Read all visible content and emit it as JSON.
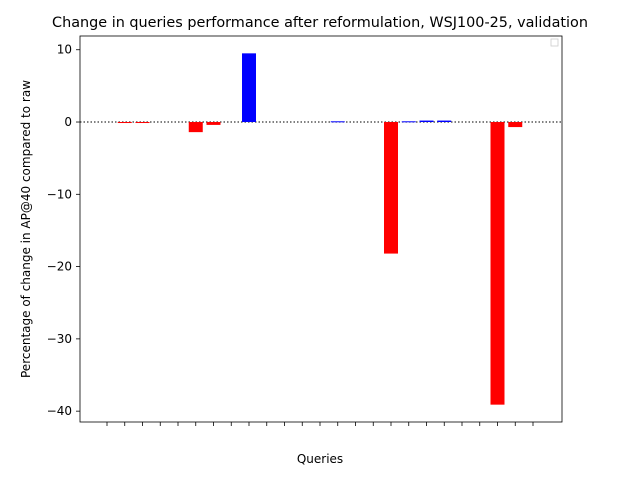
{
  "chart_data": {
    "type": "bar",
    "title": "Change in queries performance after reformulation, WSJ100-25, validation",
    "xlabel": "Queries",
    "ylabel": "Percentage of change in AP@40 compared to raw",
    "ylim": [
      -41.5,
      11.9
    ],
    "yticks": [
      10,
      0,
      -10,
      -20,
      -30,
      -40
    ],
    "n_queries": 25,
    "values": [
      0,
      -0.1,
      -0.1,
      0,
      0,
      -1.4,
      -0.4,
      0,
      9.5,
      0,
      0,
      0,
      0,
      0.1,
      0,
      0,
      -18.2,
      0.1,
      0.2,
      0.2,
      0,
      0,
      -39.1,
      -0.7,
      0
    ],
    "positive_color": "#0000ff",
    "negative_color": "#ff0000",
    "zero_line": "dotted",
    "legend": "top-right (empty)"
  }
}
